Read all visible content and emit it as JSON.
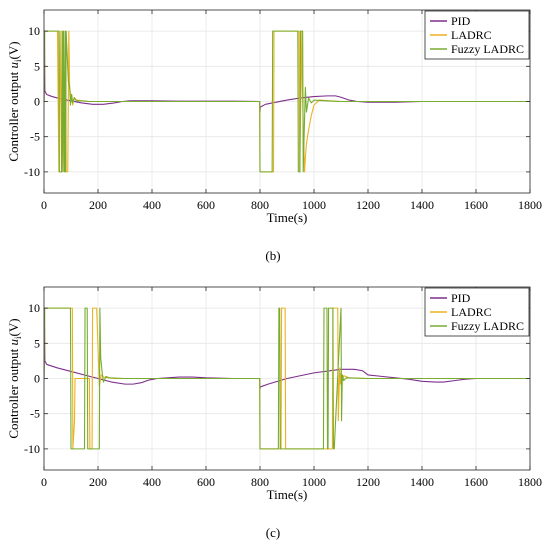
{
  "chart_data": [
    {
      "type": "line",
      "caption": "(b)",
      "xlabel": "Time(s)",
      "ylabel": "Controller output u_i(V)",
      "ylabel_main": "Controller output ",
      "ylabel_var": "u",
      "ylabel_sub": "i",
      "ylabel_unit": "(V)",
      "xlim": [
        0,
        1800
      ],
      "ylim": [
        -13,
        13
      ],
      "xticks": [
        0,
        200,
        400,
        600,
        800,
        1000,
        1200,
        1400,
        1600,
        1800
      ],
      "yticks": [
        10,
        5,
        0,
        -5,
        -10
      ],
      "legend_position": "top-right",
      "series": [
        {
          "name": "PID",
          "color": "#7e2f8e",
          "x": [
            0,
            2,
            3,
            10,
            30,
            60,
            100,
            140,
            180,
            220,
            260,
            290,
            320,
            400,
            500,
            600,
            700,
            799,
            800,
            801,
            820,
            860,
            900,
            950,
            1000,
            1050,
            1080,
            1100,
            1130,
            1160,
            1200,
            1300,
            1400,
            1500,
            1600,
            1700,
            1800
          ],
          "y": [
            0,
            10,
            1.5,
            1.0,
            0.7,
            0.4,
            0.1,
            -0.2,
            -0.4,
            -0.4,
            -0.2,
            0.0,
            0.1,
            0.1,
            0.05,
            0.05,
            0.05,
            0.0,
            -1.5,
            -0.8,
            -0.4,
            -0.1,
            0.2,
            0.5,
            0.7,
            0.8,
            0.8,
            0.6,
            0.2,
            0.0,
            -0.1,
            -0.1,
            0.0,
            0.0,
            0.0,
            0.0,
            0.0
          ]
        },
        {
          "name": "LADRC",
          "color": "#edb120",
          "x": [
            0,
            2,
            3,
            5,
            10,
            50,
            55,
            60,
            65,
            70,
            75,
            80,
            82,
            88,
            92,
            95,
            100,
            103,
            106,
            112,
            120,
            140,
            160,
            200,
            300,
            500,
            700,
            799,
            800,
            850,
            852,
            945,
            947,
            955,
            957,
            962,
            965,
            968,
            972,
            980,
            990,
            1000,
            1020,
            1060,
            1100,
            1300,
            1500,
            1800
          ],
          "y": [
            0,
            10,
            10,
            10,
            10,
            10,
            -10,
            10,
            -10,
            10,
            -10,
            10,
            -10,
            -10,
            10,
            2,
            0.5,
            1.0,
            -0.5,
            0.6,
            0.2,
            0.1,
            0.0,
            0.0,
            0.0,
            0.0,
            0.0,
            0.0,
            -10,
            -10,
            10,
            10,
            -10,
            10,
            2,
            -6,
            -10,
            -8,
            -6,
            -4,
            -2,
            -0.5,
            0.2,
            0.1,
            0.0,
            0.0,
            0.0,
            0.0
          ]
        },
        {
          "name": "Fuzzy LADRC",
          "color": "#77ac30",
          "x": [
            0,
            2,
            3,
            5,
            10,
            55,
            57,
            65,
            67,
            70,
            72,
            76,
            78,
            80,
            82,
            90,
            95,
            98,
            102,
            106,
            112,
            120,
            140,
            170,
            200,
            300,
            500,
            700,
            799,
            800,
            845,
            847,
            940,
            942,
            948,
            950,
            958,
            960,
            968,
            972,
            980,
            990,
            1000,
            1040,
            1100,
            1300,
            1500,
            1800
          ],
          "y": [
            0,
            10,
            10,
            10,
            10,
            10,
            -10,
            -10,
            10,
            -10,
            10,
            -10,
            10,
            -10,
            10,
            3,
            2.0,
            -0.5,
            1.0,
            -0.2,
            0.5,
            0.1,
            0.1,
            0.0,
            0.0,
            0.0,
            0.0,
            0.0,
            0.0,
            -10,
            -10,
            10,
            10,
            -10,
            -10,
            10,
            10,
            -10,
            2,
            -1.5,
            0.5,
            -0.2,
            0.2,
            0.1,
            0.0,
            0.0,
            0.0,
            0.0
          ]
        }
      ]
    },
    {
      "type": "line",
      "caption": "(c)",
      "xlabel": "Time(s)",
      "ylabel": "Controller output u_i(V)",
      "ylabel_main": "Controller output ",
      "ylabel_var": "u",
      "ylabel_sub": "i",
      "ylabel_unit": "(V)",
      "xlim": [
        0,
        1800
      ],
      "ylim": [
        -13,
        13
      ],
      "xticks": [
        0,
        200,
        400,
        600,
        800,
        1000,
        1200,
        1400,
        1600,
        1800
      ],
      "yticks": [
        10,
        5,
        0,
        -5,
        -10
      ],
      "legend_position": "top-right",
      "series": [
        {
          "name": "PID",
          "color": "#7e2f8e",
          "x": [
            0,
            2,
            3,
            10,
            50,
            100,
            150,
            200,
            250,
            300,
            330,
            360,
            390,
            420,
            500,
            550,
            600,
            700,
            799,
            800,
            801,
            830,
            900,
            1000,
            1100,
            1150,
            1180,
            1200,
            1250,
            1300,
            1350,
            1400,
            1450,
            1480,
            1520,
            1560,
            1600,
            1700,
            1800
          ],
          "y": [
            0,
            10,
            2.5,
            2.0,
            1.5,
            1.0,
            0.5,
            0.0,
            -0.5,
            -0.8,
            -0.8,
            -0.6,
            -0.2,
            0.0,
            0.2,
            0.2,
            0.1,
            0.0,
            0.0,
            -1.5,
            -1.2,
            -0.8,
            0.0,
            0.8,
            1.3,
            1.3,
            1.1,
            0.5,
            0.3,
            0.1,
            -0.1,
            -0.4,
            -0.5,
            -0.5,
            -0.3,
            -0.1,
            0.0,
            0.0,
            0.0
          ]
        },
        {
          "name": "LADRC",
          "color": "#edb120",
          "x": [
            0,
            2,
            3,
            5,
            10,
            105,
            107,
            113,
            115,
            168,
            170,
            178,
            180,
            195,
            205,
            212,
            220,
            240,
            260,
            300,
            500,
            700,
            799,
            800,
            878,
            880,
            893,
            895,
            1068,
            1070,
            1088,
            1090,
            1095,
            1098,
            1100,
            1105,
            1110,
            1130,
            1200,
            1400,
            1600,
            1800
          ],
          "y": [
            0,
            10,
            10,
            10,
            10,
            10,
            -10,
            -6,
            0.0,
            0.0,
            -10,
            -10,
            10,
            10,
            -1.0,
            0.5,
            0.2,
            0.1,
            0.0,
            0.0,
            0.0,
            0.0,
            0.0,
            -10,
            -10,
            10,
            10,
            -10,
            -10,
            10,
            10,
            -6,
            1.5,
            -0.8,
            0.7,
            -0.3,
            0.4,
            0.1,
            0.0,
            0.0,
            0.0,
            0.0
          ]
        },
        {
          "name": "Fuzzy LADRC",
          "color": "#77ac30",
          "x": [
            0,
            2,
            3,
            5,
            10,
            98,
            100,
            150,
            152,
            160,
            162,
            205,
            207,
            210,
            215,
            220,
            230,
            240,
            300,
            500,
            700,
            799,
            800,
            868,
            870,
            873,
            875,
            1035,
            1037,
            1048,
            1050,
            1052,
            1054,
            1070,
            1072,
            1075,
            1100,
            1102,
            1105,
            1110,
            1120,
            1200,
            1400,
            1600,
            1800
          ],
          "y": [
            0,
            10,
            10,
            10,
            10,
            10,
            -10,
            -10,
            10,
            10,
            -10,
            -10,
            10,
            3.0,
            1.0,
            -0.5,
            0.3,
            0.1,
            0.0,
            0.0,
            0.0,
            0.0,
            -10,
            -10,
            10,
            10,
            -10,
            -10,
            10,
            10,
            -10,
            -10,
            10,
            10,
            -10,
            -10,
            10,
            -6,
            0.5,
            -0.3,
            0.1,
            0.0,
            0.0,
            0.0,
            0.0
          ]
        }
      ]
    }
  ]
}
